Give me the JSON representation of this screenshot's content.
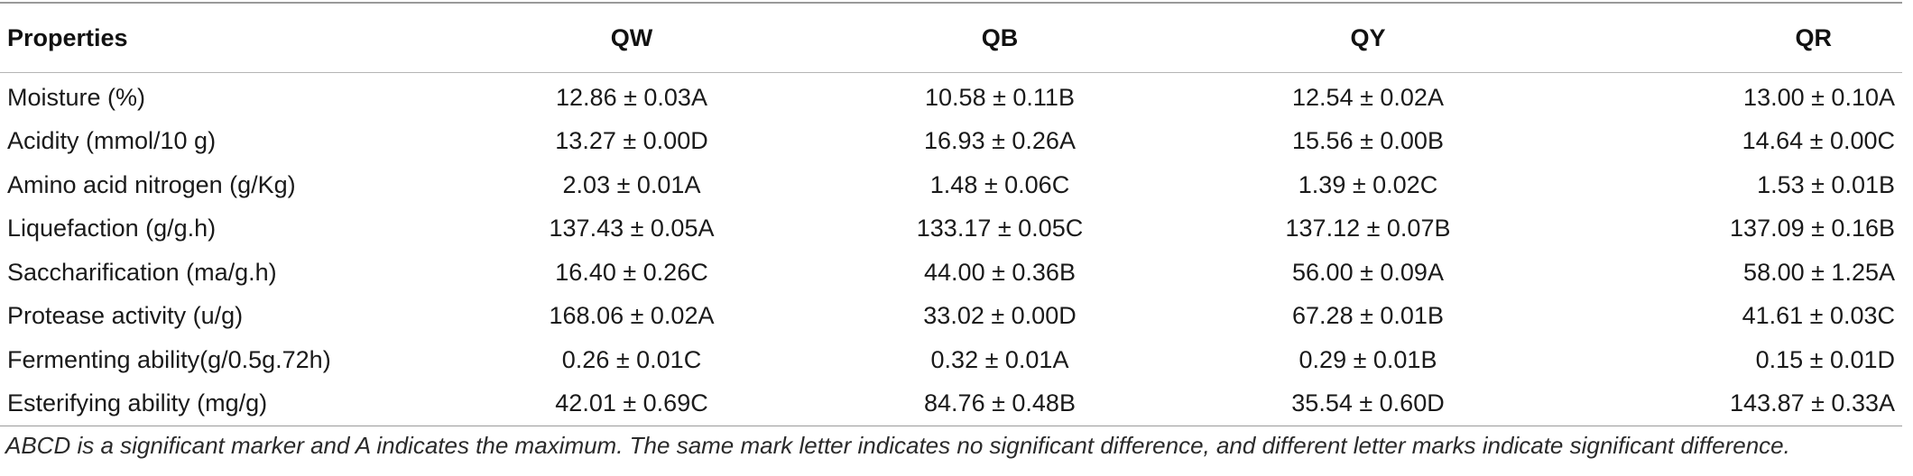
{
  "table": {
    "headers": [
      "Properties",
      "QW",
      "QB",
      "QY",
      "QR"
    ],
    "rows": [
      [
        "Moisture (%)",
        "12.86 ± 0.03A",
        "10.58 ± 0.11B",
        "12.54 ± 0.02A",
        "13.00 ± 0.10A"
      ],
      [
        "Acidity (mmol/10 g)",
        "13.27 ± 0.00D",
        "16.93 ± 0.26A",
        "15.56 ± 0.00B",
        "14.64 ± 0.00C"
      ],
      [
        "Amino acid nitrogen (g/Kg)",
        "2.03 ± 0.01A",
        "1.48 ± 0.06C",
        "1.39 ± 0.02C",
        "1.53 ± 0.01B"
      ],
      [
        "Liquefaction (g/g.h)",
        "137.43 ± 0.05A",
        "133.17 ± 0.05C",
        "137.12 ± 0.07B",
        "137.09 ± 0.16B"
      ],
      [
        "Saccharification (ma/g.h)",
        "16.40 ± 0.26C",
        "44.00 ± 0.36B",
        "56.00 ± 0.09A",
        "58.00 ± 1.25A"
      ],
      [
        "Protease activity (u/g)",
        "168.06 ± 0.02A",
        "33.02 ± 0.00D",
        "67.28 ± 0.01B",
        "41.61 ± 0.03C"
      ],
      [
        "Fermenting ability(g/0.5g.72h)",
        "0.26 ± 0.01C",
        "0.32 ± 0.01A",
        "0.29 ± 0.01B",
        "0.15 ± 0.01D"
      ],
      [
        "Esterifying ability (mg/g)",
        "42.01 ± 0.69C",
        "84.76 ± 0.48B",
        "35.54 ± 0.60D",
        "143.87 ± 0.33A"
      ]
    ]
  },
  "footnote": "ABCD is a significant marker and A indicates the maximum. The same mark letter indicates no significant difference, and different letter marks indicate significant difference."
}
